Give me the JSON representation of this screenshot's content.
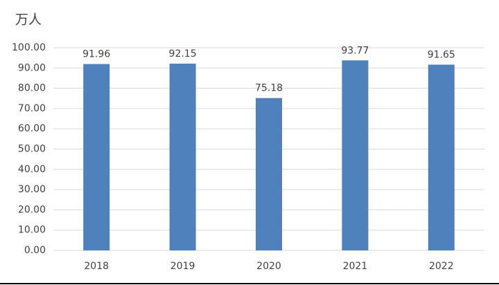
{
  "chart_data": {
    "type": "bar",
    "y_label": "万人",
    "categories": [
      "2018",
      "2019",
      "2020",
      "2021",
      "2022"
    ],
    "values": [
      91.96,
      92.15,
      75.18,
      93.77,
      91.65
    ],
    "color": "#4f81bd",
    "ylim": [
      0,
      100
    ],
    "yticks": [
      {
        "value": 0,
        "label": "0.00"
      },
      {
        "value": 10,
        "label": "10.00"
      },
      {
        "value": 20,
        "label": "20.00"
      },
      {
        "value": 30,
        "label": "30.00"
      },
      {
        "value": 40,
        "label": "40.00"
      },
      {
        "value": 50,
        "label": "50.00"
      },
      {
        "value": 60,
        "label": "60.00"
      },
      {
        "value": 70,
        "label": "70.00"
      },
      {
        "value": 80,
        "label": "80.00"
      },
      {
        "value": 90,
        "label": "90.00"
      },
      {
        "value": 100,
        "label": "100.00"
      }
    ],
    "grid": true
  }
}
